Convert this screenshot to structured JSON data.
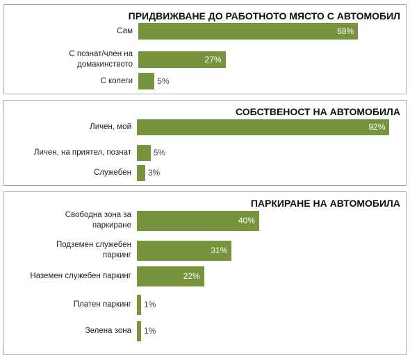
{
  "chart_data": [
    {
      "type": "bar",
      "orientation": "horizontal",
      "title": "ПРИДВИЖВАНЕ ДО РАБОТНОТО МЯСТО С АВТОМОБИЛ",
      "categories": [
        "Сам",
        "С познат/член на домакинството",
        "С колеги"
      ],
      "category_lines": [
        [
          "Сам"
        ],
        [
          "С познат/член на",
          "домакинството"
        ],
        [
          "С колеги"
        ]
      ],
      "values": [
        68,
        27,
        5
      ],
      "value_labels": [
        "68%",
        "27%",
        "5%"
      ],
      "bar_color": "#77933c",
      "xlim": [
        0,
        100
      ]
    },
    {
      "type": "bar",
      "orientation": "horizontal",
      "title": "СОБСТВЕНОСТ НА АВТОМОБИЛА",
      "categories": [
        "Личен, мой",
        "Личен, на приятел, познат",
        "Служебен"
      ],
      "category_lines": [
        [
          "Личен, мой"
        ],
        [
          "Личен, на приятел, познат"
        ],
        [
          "Служебен"
        ]
      ],
      "values": [
        92,
        5,
        3
      ],
      "value_labels": [
        "92%",
        "5%",
        "3%"
      ],
      "bar_color": "#77933c",
      "xlim": [
        0,
        100
      ]
    },
    {
      "type": "bar",
      "orientation": "horizontal",
      "title": "ПАРКИРАНЕ НА АВТОМОБИЛА",
      "categories": [
        "Свободна зона за паркиране",
        "Подземен служебен паркинг",
        "Наземен служебен паркинг",
        "Платен паркинг",
        "Зелена зона"
      ],
      "category_lines": [
        [
          "Свободна зона за",
          "паркиране"
        ],
        [
          "Подземен служебен",
          "паркинг"
        ],
        [
          "Наземен служебен паркинг"
        ],
        [
          "Платен паркинг"
        ],
        [
          "Зелена зона"
        ]
      ],
      "values": [
        40,
        31,
        22,
        1,
        1
      ],
      "value_labels": [
        "40%",
        "31%",
        "22%",
        "1%",
        "1%"
      ],
      "bar_color": "#77933c",
      "xlim": [
        0,
        100
      ]
    }
  ]
}
